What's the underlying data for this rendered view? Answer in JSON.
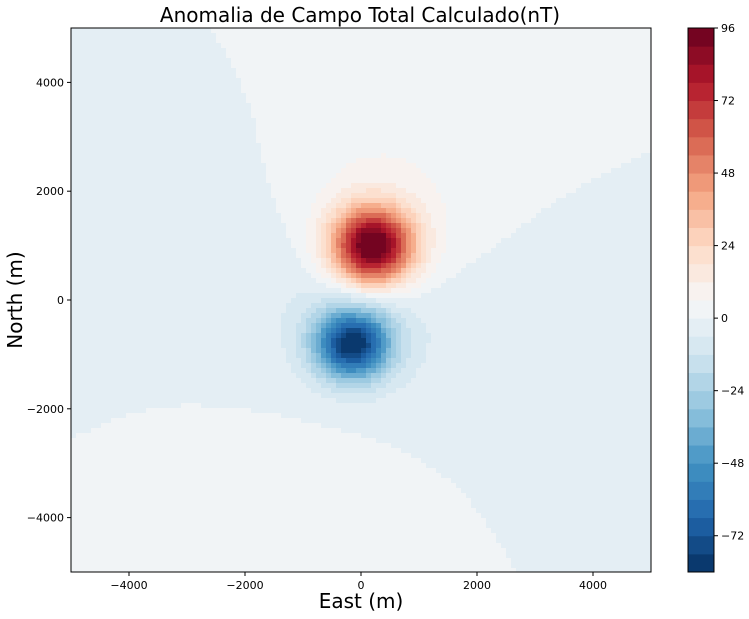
{
  "chart_data": {
    "type": "contourf",
    "title": "Anomalia de Campo Total Calculado(nT)",
    "xlabel": "East (m)",
    "ylabel": "North (m)",
    "xlim": [
      -5000,
      5000
    ],
    "ylim": [
      -5000,
      5000
    ],
    "xticks": [
      -4000,
      -2000,
      0,
      2000,
      4000
    ],
    "yticks": [
      -4000,
      -2000,
      0,
      2000,
      4000
    ],
    "xtick_labels": [
      "−4000",
      "−2000",
      "0",
      "2000",
      "4000"
    ],
    "ytick_labels": [
      "−4000",
      "−2000",
      "0",
      "2000",
      "4000"
    ],
    "colormap": "RdBu_r",
    "levels": [
      -84,
      -78,
      -72,
      -66,
      -60,
      -54,
      -48,
      -42,
      -36,
      -30,
      -24,
      -18,
      -12,
      -6,
      0,
      6,
      12,
      18,
      24,
      30,
      36,
      42,
      48,
      54,
      60,
      66,
      72,
      78,
      84,
      90,
      96
    ],
    "colorbar_ticks": [
      -72,
      -48,
      -24,
      0,
      24,
      48,
      72,
      96
    ],
    "colorbar_tick_labels": [
      "−72",
      "−48",
      "−24",
      "0",
      "24",
      "48",
      "72",
      "96"
    ],
    "anomaly": {
      "max": {
        "x": 200,
        "y": 1000,
        "value": 96
      },
      "min": {
        "x": -150,
        "y": -800,
        "value": -84
      }
    },
    "grid": false,
    "legend": "none"
  }
}
